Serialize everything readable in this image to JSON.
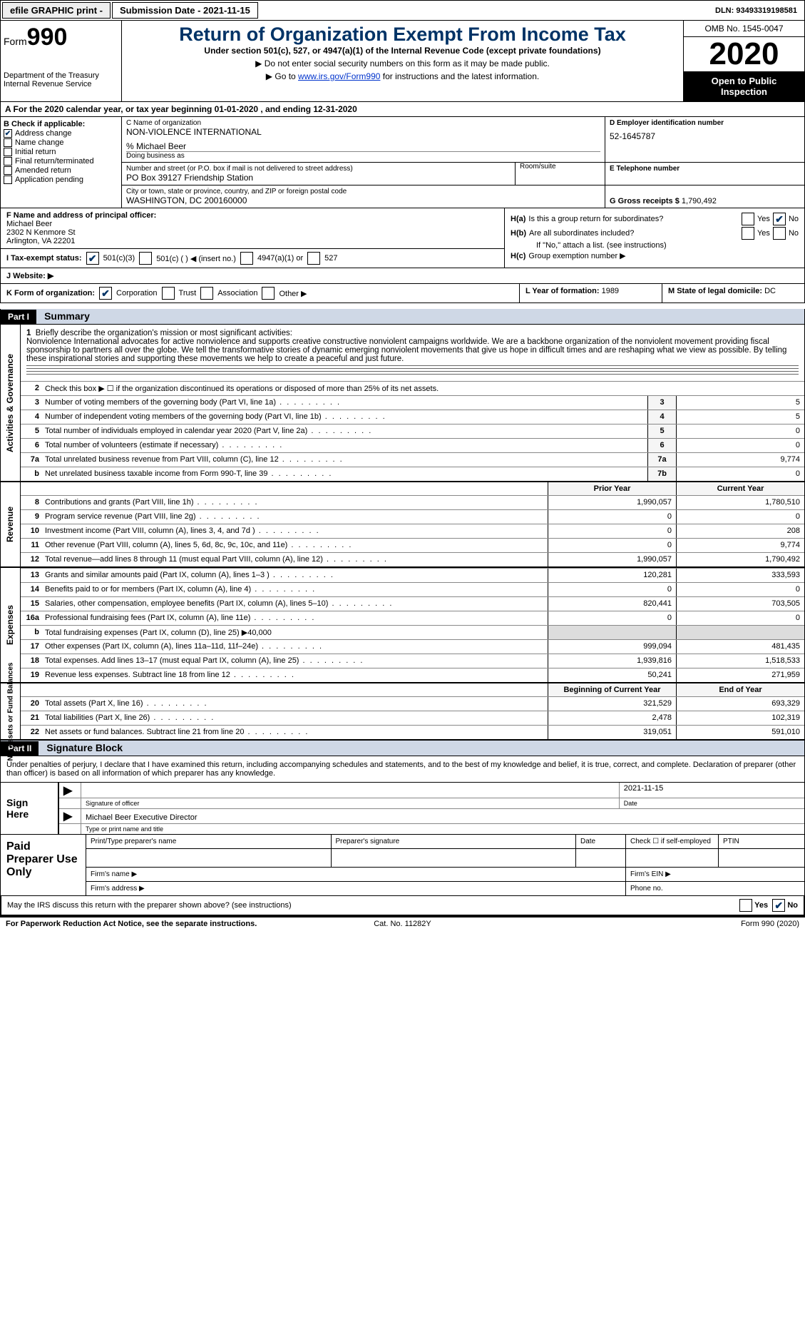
{
  "topbar": {
    "efile": "efile GRAPHIC print -",
    "submission": "Submission Date - 2021-11-15",
    "dln": "DLN: 93493319198581"
  },
  "header": {
    "form_word": "Form",
    "form_no": "990",
    "title": "Return of Organization Exempt From Income Tax",
    "subtitle": "Under section 501(c), 527, or 4947(a)(1) of the Internal Revenue Code (except private foundations)",
    "note1": "▶ Do not enter social security numbers on this form as it may be made public.",
    "note2_pre": "▶ Go to ",
    "note2_link": "www.irs.gov/Form990",
    "note2_post": " for instructions and the latest information.",
    "dept1": "Department of the Treasury",
    "dept2": "Internal Revenue Service",
    "omb": "OMB No. 1545-0047",
    "year": "2020",
    "open": "Open to Public Inspection"
  },
  "rowA": "A  For the 2020 calendar year, or tax year beginning 01-01-2020    , and ending 12-31-2020",
  "sectionB": {
    "label": "B Check if applicable:",
    "items": [
      {
        "label": "Address change",
        "checked": true
      },
      {
        "label": "Name change",
        "checked": false
      },
      {
        "label": "Initial return",
        "checked": false
      },
      {
        "label": "Final return/terminated",
        "checked": false
      },
      {
        "label": "Amended return",
        "checked": false
      },
      {
        "label": "Application pending",
        "checked": false
      }
    ]
  },
  "sectionC": {
    "name_lbl": "C Name of organization",
    "name": "NON-VIOLENCE INTERNATIONAL",
    "care_of": "% Michael Beer",
    "dba_lbl": "Doing business as",
    "addr_lbl": "Number and street (or P.O. box if mail is not delivered to street address)",
    "addr": "PO Box 39127 Friendship Station",
    "room_lbl": "Room/suite",
    "city_lbl": "City or town, state or province, country, and ZIP or foreign postal code",
    "city": "WASHINGTON, DC  200160000"
  },
  "sectionD": {
    "lbl": "D Employer identification number",
    "val": "52-1645787"
  },
  "sectionE": {
    "lbl": "E Telephone number",
    "val": ""
  },
  "sectionG": {
    "lbl": "G Gross receipts $",
    "val": "1,790,492"
  },
  "sectionF": {
    "lbl": "F  Name and address of principal officer:",
    "name": "Michael Beer",
    "addr1": "2302 N Kenmore St",
    "addr2": "Arlington, VA  22201"
  },
  "sectionH": {
    "a_lbl": "H(a)",
    "a_txt": "Is this a group return for subordinates?",
    "a_yes": "Yes",
    "a_no": "No",
    "a_no_checked": true,
    "b_lbl": "H(b)",
    "b_txt": "Are all subordinates included?",
    "b_yes": "Yes",
    "b_no": "No",
    "b_note": "If \"No,\" attach a list. (see instructions)",
    "c_lbl": "H(c)",
    "c_txt": "Group exemption number ▶"
  },
  "taxExempt": {
    "i_lbl": "I    Tax-exempt status:",
    "opt1": "501(c)(3)",
    "opt1_checked": true,
    "opt2": "501(c) (  ) ◀ (insert no.)",
    "opt3": "4947(a)(1) or",
    "opt4": "527"
  },
  "rowJ": {
    "lbl": "J   Website: ▶",
    "val": ""
  },
  "rowK": {
    "lbl": "K Form of organization:",
    "corp": "Corporation",
    "corp_checked": true,
    "trust": "Trust",
    "assoc": "Association",
    "other": "Other ▶",
    "year_lbl": "L Year of formation:",
    "year_val": "1989",
    "state_lbl": "M State of legal domicile:",
    "state_val": "DC"
  },
  "part1": {
    "tag": "Part I",
    "title": "Summary",
    "side1": "Activities & Governance",
    "line1_lbl": "Briefly describe the organization's mission or most significant activities:",
    "mission": "Nonviolence International advocates for active nonviolence and supports creative constructive nonviolent campaigns worldwide. We are a backbone organization of the nonviolent movement providing fiscal sponsorship to partners all over the globe. We tell the transformative stories of dynamic emerging nonviolent movements that give us hope in difficult times and are reshaping what we view as possible. By telling these inspirational stories and supporting these movements we help to create a peaceful and just future.",
    "line2": "Check this box ▶ ☐   if the organization discontinued its operations or disposed of more than 25% of its net assets.",
    "rows_gov": [
      {
        "n": "3",
        "t": "Number of voting members of the governing body (Part VI, line 1a)",
        "box": "3",
        "v": "5"
      },
      {
        "n": "4",
        "t": "Number of independent voting members of the governing body (Part VI, line 1b)",
        "box": "4",
        "v": "5"
      },
      {
        "n": "5",
        "t": "Total number of individuals employed in calendar year 2020 (Part V, line 2a)",
        "box": "5",
        "v": "0"
      },
      {
        "n": "6",
        "t": "Total number of volunteers (estimate if necessary)",
        "box": "6",
        "v": "0"
      },
      {
        "n": "7a",
        "t": "Total unrelated business revenue from Part VIII, column (C), line 12",
        "box": "7a",
        "v": "9,774"
      },
      {
        "n": "b",
        "t": "Net unrelated business taxable income from Form 990-T, line 39",
        "box": "7b",
        "v": "0"
      }
    ],
    "side2": "Revenue",
    "prior_hdr": "Prior Year",
    "curr_hdr": "Current Year",
    "rows_rev": [
      {
        "n": "8",
        "t": "Contributions and grants (Part VIII, line 1h)",
        "p": "1,990,057",
        "c": "1,780,510"
      },
      {
        "n": "9",
        "t": "Program service revenue (Part VIII, line 2g)",
        "p": "0",
        "c": "0"
      },
      {
        "n": "10",
        "t": "Investment income (Part VIII, column (A), lines 3, 4, and 7d )",
        "p": "0",
        "c": "208"
      },
      {
        "n": "11",
        "t": "Other revenue (Part VIII, column (A), lines 5, 6d, 8c, 9c, 10c, and 11e)",
        "p": "0",
        "c": "9,774"
      },
      {
        "n": "12",
        "t": "Total revenue—add lines 8 through 11 (must equal Part VIII, column (A), line 12)",
        "p": "1,990,057",
        "c": "1,790,492"
      }
    ],
    "side3": "Expenses",
    "rows_exp": [
      {
        "n": "13",
        "t": "Grants and similar amounts paid (Part IX, column (A), lines 1–3 )",
        "p": "120,281",
        "c": "333,593"
      },
      {
        "n": "14",
        "t": "Benefits paid to or for members (Part IX, column (A), line 4)",
        "p": "0",
        "c": "0"
      },
      {
        "n": "15",
        "t": "Salaries, other compensation, employee benefits (Part IX, column (A), lines 5–10)",
        "p": "820,441",
        "c": "703,505"
      },
      {
        "n": "16a",
        "t": "Professional fundraising fees (Part IX, column (A), line 11e)",
        "p": "0",
        "c": "0"
      },
      {
        "n": "b",
        "t": "Total fundraising expenses (Part IX, column (D), line 25) ▶40,000",
        "p": "",
        "c": "",
        "grey": true
      },
      {
        "n": "17",
        "t": "Other expenses (Part IX, column (A), lines 11a–11d, 11f–24e)",
        "p": "999,094",
        "c": "481,435"
      },
      {
        "n": "18",
        "t": "Total expenses. Add lines 13–17 (must equal Part IX, column (A), line 25)",
        "p": "1,939,816",
        "c": "1,518,533"
      },
      {
        "n": "19",
        "t": "Revenue less expenses. Subtract line 18 from line 12",
        "p": "50,241",
        "c": "271,959"
      }
    ],
    "side4": "Net Assets or Fund Balances",
    "begin_hdr": "Beginning of Current Year",
    "end_hdr": "End of Year",
    "rows_net": [
      {
        "n": "20",
        "t": "Total assets (Part X, line 16)",
        "p": "321,529",
        "c": "693,329"
      },
      {
        "n": "21",
        "t": "Total liabilities (Part X, line 26)",
        "p": "2,478",
        "c": "102,319"
      },
      {
        "n": "22",
        "t": "Net assets or fund balances. Subtract line 21 from line 20",
        "p": "319,051",
        "c": "591,010"
      }
    ]
  },
  "part2": {
    "tag": "Part II",
    "title": "Signature Block",
    "decl": "Under penalties of perjury, I declare that I have examined this return, including accompanying schedules and statements, and to the best of my knowledge and belief, it is true, correct, and complete. Declaration of preparer (other than officer) is based on all information of which preparer has any knowledge.",
    "sign_here": "Sign Here",
    "sig_officer_lbl": "Signature of officer",
    "date_lbl": "Date",
    "date_val": "2021-11-15",
    "name_title": "Michael Beer  Executive Director",
    "name_title_lbl": "Type or print name and title",
    "ppu": "Paid Preparer Use Only",
    "col_print": "Print/Type preparer's name",
    "col_sig": "Preparer's signature",
    "col_date": "Date",
    "col_self": "Check ☐ if self-employed",
    "col_ptin": "PTIN",
    "firm_name": "Firm's name     ▶",
    "firm_ein": "Firm's EIN ▶",
    "firm_addr": "Firm's address  ▶",
    "phone": "Phone no.",
    "discuss": "May the IRS discuss this return with the preparer shown above? (see instructions)",
    "d_yes": "Yes",
    "d_no": "No",
    "d_no_checked": true
  },
  "footer": {
    "left": "For Paperwork Reduction Act Notice, see the separate instructions.",
    "mid": "Cat. No. 11282Y",
    "right": "Form 990 (2020)"
  }
}
